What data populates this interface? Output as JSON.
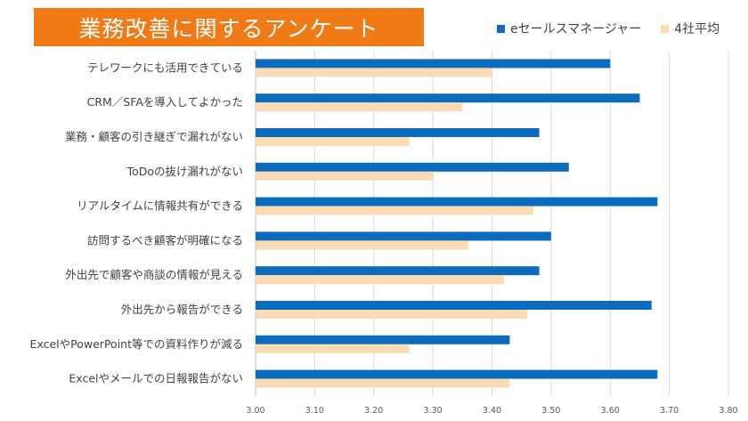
{
  "title": "業務改善に関するアンケート",
  "colors": {
    "title_bg": "#f07a16",
    "series1": "#0b6bbd",
    "series2": "#fbdbb4",
    "grid": "#d9d9d9"
  },
  "chart_data": {
    "type": "bar",
    "orientation": "horizontal",
    "categories": [
      "テレワークにも活用できている",
      "CRM／SFAを導入してよかった",
      "業務・顧客の引き継ぎで漏れがない",
      "ToDoの抜け漏れがない",
      "リアルタイムに情報共有ができる",
      "訪問するべき顧客が明確になる",
      "外出先で顧客や商談の情報が見える",
      "外出先から報告ができる",
      "ExcelやPowerPoint等での資料作りが減る",
      "Excelやメールでの日報報告がない"
    ],
    "series": [
      {
        "name": "eセールスマネージャー",
        "values": [
          3.6,
          3.65,
          3.48,
          3.53,
          3.68,
          3.5,
          3.48,
          3.67,
          3.43,
          3.68
        ]
      },
      {
        "name": "4社平均",
        "values": [
          3.4,
          3.35,
          3.26,
          3.3,
          3.47,
          3.36,
          3.42,
          3.46,
          3.26,
          3.43
        ]
      }
    ],
    "xlim": [
      3.0,
      3.8
    ],
    "ticks": [
      "3.00",
      "3.10",
      "3.20",
      "3.30",
      "3.40",
      "3.50",
      "3.60",
      "3.70",
      "3.80"
    ],
    "grid": true,
    "legend_position": "top-right"
  }
}
